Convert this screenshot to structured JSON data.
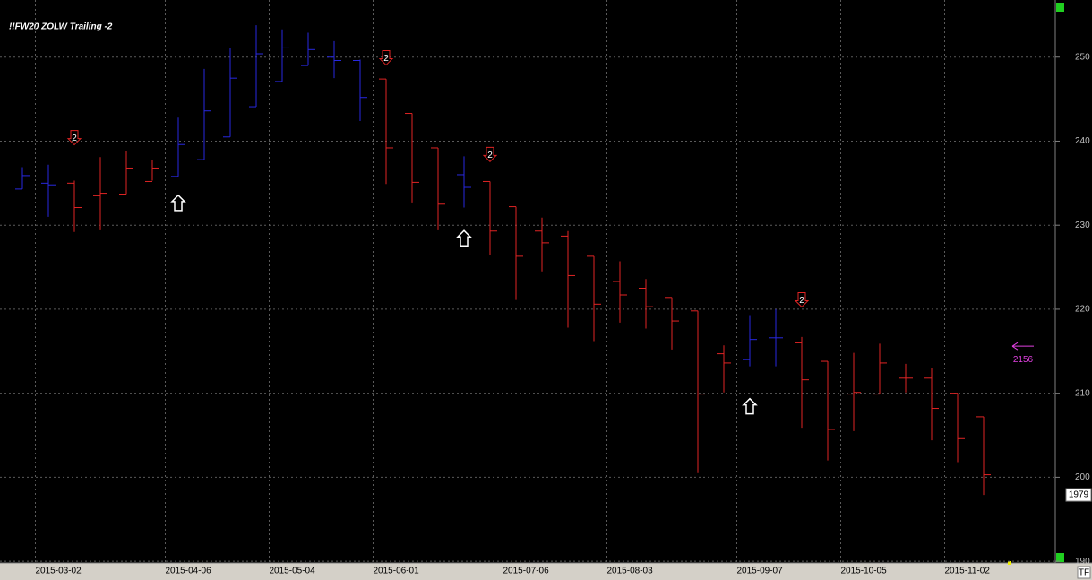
{
  "chart_data": {
    "type": "ohlc",
    "title": "!!FW20 ZOLW Trailing -2",
    "categories": [
      null,
      "2015-03-02",
      null,
      null,
      null,
      null,
      "2015-04-06",
      null,
      null,
      null,
      "2015-05-04",
      null,
      null,
      null,
      "2015-06-01",
      null,
      null,
      null,
      null,
      "2015-07-06",
      null,
      null,
      null,
      "2015-08-03",
      null,
      null,
      null,
      null,
      "2015-09-07",
      null,
      null,
      null,
      "2015-10-05",
      null,
      null,
      null,
      "2015-11-02",
      null
    ],
    "open": [
      234.3,
      235.0,
      235.0,
      233.5,
      233.7,
      235.2,
      235.8,
      237.8,
      240.5,
      244.1,
      247.1,
      249.0,
      250.0,
      249.6,
      247.4,
      243.3,
      239.2,
      236.0,
      235.2,
      232.2,
      229.3,
      228.7,
      226.3,
      223.3,
      222.5,
      221.4,
      219.8,
      214.7,
      214.0,
      216.6,
      216.0,
      213.8,
      209.9,
      209.9,
      211.8,
      211.8,
      210.0,
      207.2
    ],
    "high": [
      236.9,
      237.2,
      235.3,
      238.1,
      238.8,
      237.7,
      242.8,
      248.6,
      251.1,
      253.8,
      253.3,
      252.9,
      251.9,
      249.7,
      247.4,
      243.3,
      239.2,
      238.2,
      235.2,
      232.2,
      230.9,
      229.3,
      226.3,
      225.7,
      223.6,
      221.4,
      219.8,
      215.7,
      219.3,
      220.0,
      216.7,
      213.8,
      214.8,
      215.9,
      213.5,
      213.0,
      210.0,
      207.2
    ],
    "low": [
      234.3,
      231.0,
      229.2,
      229.4,
      233.7,
      235.3,
      235.8,
      237.7,
      240.5,
      244.1,
      247.0,
      249.0,
      247.5,
      242.4,
      234.9,
      232.7,
      229.4,
      232.1,
      226.4,
      221.1,
      224.5,
      217.8,
      216.2,
      218.4,
      217.7,
      215.2,
      200.5,
      210.1,
      213.2,
      213.2,
      205.9,
      202.0,
      205.5,
      209.9,
      210.1,
      204.4,
      201.8,
      197.9
    ],
    "close": [
      235.9,
      234.8,
      232.1,
      233.8,
      236.8,
      236.8,
      239.6,
      243.6,
      247.5,
      250.4,
      251.1,
      250.9,
      249.6,
      245.2,
      239.2,
      235.1,
      232.5,
      234.5,
      229.3,
      226.3,
      227.9,
      224.0,
      220.6,
      221.7,
      220.3,
      218.6,
      209.9,
      213.6,
      216.4,
      216.6,
      211.6,
      205.7,
      210.1,
      213.6,
      211.8,
      208.2,
      204.6,
      200.3
    ],
    "bar_colors": [
      "#2828e0",
      "#2828e0",
      "#e02424",
      "#e02424",
      "#e02424",
      "#e02424",
      "#2828e0",
      "#2828e0",
      "#2828e0",
      "#2828e0",
      "#2828e0",
      "#2828e0",
      "#2828e0",
      "#2828e0",
      "#e02424",
      "#e02424",
      "#e02424",
      "#2828e0",
      "#e02424",
      "#e02424",
      "#e02424",
      "#e02424",
      "#e02424",
      "#e02424",
      "#e02424",
      "#e02424",
      "#e02424",
      "#e02424",
      "#2828e0",
      "#2828e0",
      "#e02424",
      "#e02424",
      "#e02424",
      "#e02424",
      "#e02424",
      "#e02424",
      "#e02424",
      "#e02424"
    ],
    "sell_signals": {
      "label": "2",
      "color": "#e02424",
      "values": [
        null,
        null,
        240.2,
        null,
        null,
        null,
        null,
        null,
        null,
        null,
        null,
        null,
        null,
        null,
        249.7,
        null,
        null,
        null,
        238.2,
        null,
        null,
        null,
        null,
        null,
        null,
        null,
        null,
        null,
        null,
        null,
        220.9,
        null,
        null,
        null,
        null,
        null,
        null,
        null
      ]
    },
    "buy_signals": {
      "color": "#ffffff",
      "values": [
        null,
        null,
        null,
        null,
        null,
        null,
        232.6,
        null,
        null,
        null,
        null,
        null,
        null,
        null,
        null,
        null,
        null,
        228.4,
        null,
        null,
        null,
        null,
        null,
        null,
        null,
        null,
        null,
        null,
        208.4,
        null,
        null,
        null,
        null,
        null,
        null,
        null,
        null,
        null
      ]
    },
    "target": {
      "label": "2156",
      "value": 215.6,
      "color": "#e040e0"
    },
    "last_price": {
      "label": "1979",
      "value": 197.9
    },
    "ylim": [
      189.8,
      256.8
    ],
    "yticks": [
      190,
      200,
      210,
      220,
      230,
      240,
      250
    ],
    "grid": true
  },
  "footer": {
    "corner_label": "TF"
  }
}
